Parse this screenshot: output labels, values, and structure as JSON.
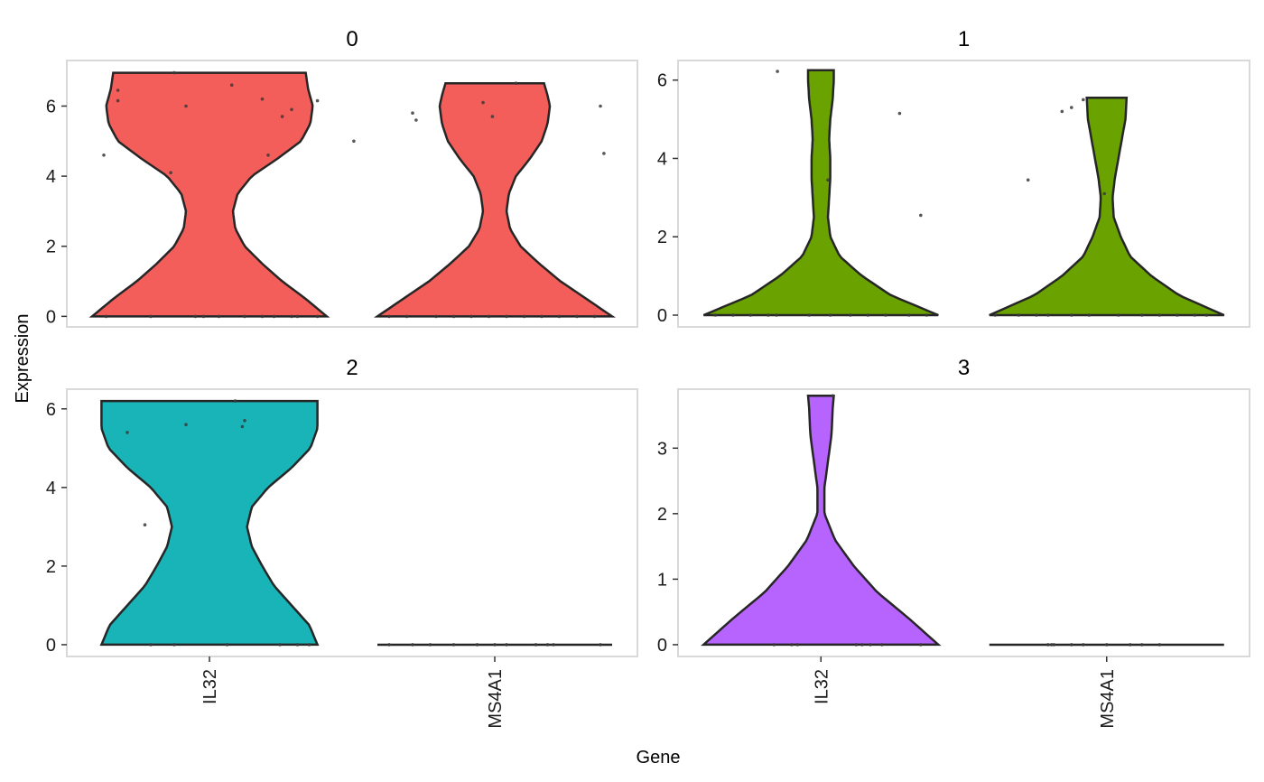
{
  "chart_data": {
    "type": "violin",
    "xlabel": "Gene",
    "ylabel": "Expression",
    "categories": [
      "IL32",
      "MS4A1"
    ],
    "colors": {
      "0": "#F35E5A",
      "1": "#6AA300",
      "2": "#19B4B8",
      "3": "#B763FE"
    },
    "panels": [
      {
        "id": "0",
        "ylim": [
          -0.3,
          7.3
        ],
        "yticks": [
          0,
          2,
          4,
          6
        ],
        "violins": [
          {
            "gene": "IL32",
            "max": 6.95,
            "dens": [
              [
                0,
                1.0
              ],
              [
                0.5,
                0.82
              ],
              [
                1.0,
                0.62
              ],
              [
                1.5,
                0.45
              ],
              [
                2.0,
                0.3
              ],
              [
                2.5,
                0.22
              ],
              [
                3.0,
                0.2
              ],
              [
                3.5,
                0.24
              ],
              [
                4.0,
                0.36
              ],
              [
                4.5,
                0.58
              ],
              [
                5.0,
                0.78
              ],
              [
                5.5,
                0.86
              ],
              [
                6.0,
                0.88
              ],
              [
                6.5,
                0.84
              ],
              [
                6.95,
                0.82
              ]
            ],
            "points": [
              [
                6.95,
                -0.3
              ],
              [
                6.45,
                -0.78
              ],
              [
                6.15,
                -0.78
              ],
              [
                6.6,
                0.19
              ],
              [
                6.0,
                -0.2
              ],
              [
                6.2,
                0.45
              ],
              [
                5.7,
                0.62
              ],
              [
                5.9,
                0.7
              ],
              [
                6.15,
                0.92
              ],
              [
                5.0,
                1.23
              ],
              [
                4.6,
                -0.9
              ],
              [
                4.1,
                -0.33
              ],
              [
                4.6,
                0.5
              ],
              [
                0,
                -0.88
              ],
              [
                0,
                -0.5
              ],
              [
                0,
                -0.12
              ],
              [
                0,
                -0.05
              ],
              [
                0,
                0.08
              ],
              [
                0,
                0.3
              ],
              [
                0,
                0.45
              ],
              [
                0,
                0.55
              ],
              [
                0,
                0.7
              ],
              [
                0,
                0.75
              ],
              [
                0,
                0.92
              ]
            ]
          },
          {
            "gene": "MS4A1",
            "max": 6.65,
            "dens": [
              [
                0,
                1.0
              ],
              [
                0.5,
                0.78
              ],
              [
                1.0,
                0.56
              ],
              [
                1.5,
                0.38
              ],
              [
                2.0,
                0.22
              ],
              [
                2.5,
                0.13
              ],
              [
                3.0,
                0.1
              ],
              [
                3.5,
                0.12
              ],
              [
                4.0,
                0.18
              ],
              [
                4.5,
                0.3
              ],
              [
                5.0,
                0.4
              ],
              [
                5.5,
                0.45
              ],
              [
                6.0,
                0.47
              ],
              [
                6.3,
                0.45
              ],
              [
                6.65,
                0.42
              ]
            ],
            "points": [
              [
                5.8,
                -0.7
              ],
              [
                5.6,
                -0.67
              ],
              [
                6.1,
                -0.1
              ],
              [
                5.7,
                -0.02
              ],
              [
                6.65,
                0.18
              ],
              [
                6.0,
                0.9
              ],
              [
                4.65,
                0.93
              ],
              [
                0,
                -0.9
              ],
              [
                0,
                -0.75
              ],
              [
                0,
                -0.5
              ],
              [
                0,
                -0.35
              ],
              [
                0,
                -0.2
              ],
              [
                0,
                -0.05
              ],
              [
                0,
                0.1
              ],
              [
                0,
                0.25
              ],
              [
                0,
                0.4
              ],
              [
                0,
                0.55
              ],
              [
                0,
                0.7
              ],
              [
                0,
                0.85
              ]
            ]
          }
        ]
      },
      {
        "id": "1",
        "ylim": [
          -0.3,
          6.5
        ],
        "yticks": [
          0,
          2,
          4,
          6
        ],
        "violins": [
          {
            "gene": "IL32",
            "max": 6.25,
            "dens": [
              [
                0,
                1.0
              ],
              [
                0.5,
                0.6
              ],
              [
                1.0,
                0.35
              ],
              [
                1.5,
                0.16
              ],
              [
                2.0,
                0.08
              ],
              [
                2.5,
                0.06
              ],
              [
                3.0,
                0.07
              ],
              [
                3.5,
                0.08
              ],
              [
                4.0,
                0.08
              ],
              [
                4.5,
                0.07
              ],
              [
                5.0,
                0.08
              ],
              [
                5.5,
                0.1
              ],
              [
                6.0,
                0.11
              ],
              [
                6.25,
                0.11
              ]
            ],
            "points": [
              [
                6.22,
                -0.37
              ],
              [
                5.15,
                0.67
              ],
              [
                3.45,
                0.06
              ],
              [
                2.55,
                0.85
              ],
              [
                0,
                -0.9
              ],
              [
                0,
                -0.75
              ],
              [
                0,
                -0.6
              ],
              [
                0,
                -0.45
              ],
              [
                0,
                -0.38
              ],
              [
                0,
                -0.1
              ],
              [
                0,
                0.08
              ],
              [
                0,
                0.25
              ],
              [
                0,
                0.4
              ],
              [
                0,
                0.55
              ],
              [
                0,
                0.75
              ],
              [
                0,
                0.9
              ]
            ]
          },
          {
            "gene": "MS4A1",
            "max": 5.55,
            "dens": [
              [
                0,
                1.0
              ],
              [
                0.5,
                0.62
              ],
              [
                1.0,
                0.38
              ],
              [
                1.5,
                0.2
              ],
              [
                2.0,
                0.12
              ],
              [
                2.5,
                0.06
              ],
              [
                3.0,
                0.05
              ],
              [
                3.5,
                0.07
              ],
              [
                4.0,
                0.1
              ],
              [
                4.5,
                0.13
              ],
              [
                5.0,
                0.16
              ],
              [
                5.55,
                0.17
              ]
            ],
            "points": [
              [
                5.2,
                -0.38
              ],
              [
                5.3,
                -0.3
              ],
              [
                5.5,
                -0.2
              ],
              [
                3.45,
                -0.67
              ],
              [
                3.1,
                -0.02
              ],
              [
                0,
                -0.95
              ],
              [
                0,
                -0.75
              ],
              [
                0,
                -0.6
              ],
              [
                0,
                -0.5
              ],
              [
                0,
                -0.3
              ],
              [
                0,
                -0.15
              ],
              [
                0,
                0.1
              ],
              [
                0,
                0.3
              ],
              [
                0,
                0.45
              ],
              [
                0,
                0.6
              ],
              [
                0,
                0.75
              ],
              [
                0,
                0.85
              ]
            ]
          }
        ]
      },
      {
        "id": "2",
        "ylim": [
          -0.3,
          6.5
        ],
        "yticks": [
          0,
          2,
          4,
          6
        ],
        "violins": [
          {
            "gene": "IL32",
            "max": 6.2,
            "dens": [
              [
                0,
                0.92
              ],
              [
                0.5,
                0.85
              ],
              [
                1.0,
                0.7
              ],
              [
                1.5,
                0.55
              ],
              [
                2.0,
                0.45
              ],
              [
                2.5,
                0.36
              ],
              [
                3.0,
                0.32
              ],
              [
                3.5,
                0.36
              ],
              [
                4.0,
                0.5
              ],
              [
                4.5,
                0.7
              ],
              [
                5.0,
                0.86
              ],
              [
                5.5,
                0.92
              ],
              [
                6.0,
                0.92
              ],
              [
                6.2,
                0.92
              ]
            ],
            "points": [
              [
                6.2,
                0.22
              ],
              [
                5.4,
                -0.7
              ],
              [
                5.6,
                -0.2
              ],
              [
                5.7,
                0.3
              ],
              [
                5.55,
                0.28
              ],
              [
                3.05,
                -0.55
              ],
              [
                0,
                -0.5
              ],
              [
                0,
                -0.3
              ],
              [
                0,
                0.15
              ],
              [
                0,
                0.6
              ],
              [
                0,
                0.75
              ],
              [
                0,
                0.85
              ]
            ]
          },
          {
            "gene": "MS4A1",
            "max": 0,
            "dens": [
              [
                0,
                1.0
              ]
            ],
            "points": [
              [
                0,
                -0.9
              ],
              [
                0,
                -0.7
              ],
              [
                0,
                -0.55
              ],
              [
                0,
                -0.35
              ],
              [
                0,
                -0.15
              ],
              [
                0,
                0.0
              ],
              [
                0,
                0.1
              ],
              [
                0,
                0.35
              ],
              [
                0,
                0.45
              ],
              [
                0,
                0.5
              ],
              [
                0,
                0.9
              ]
            ]
          }
        ]
      },
      {
        "id": "3",
        "ylim": [
          -0.18,
          3.9
        ],
        "yticks": [
          0,
          1,
          2,
          3
        ],
        "violins": [
          {
            "gene": "IL32",
            "max": 3.8,
            "dens": [
              [
                0,
                1.0
              ],
              [
                0.4,
                0.75
              ],
              [
                0.8,
                0.48
              ],
              [
                1.2,
                0.28
              ],
              [
                1.6,
                0.12
              ],
              [
                2.0,
                0.03
              ],
              [
                2.4,
                0.03
              ],
              [
                2.8,
                0.06
              ],
              [
                3.2,
                0.09
              ],
              [
                3.6,
                0.1
              ],
              [
                3.8,
                0.11
              ]
            ],
            "points": [
              [
                3.8,
                0.1
              ],
              [
                0,
                -0.4
              ],
              [
                0,
                -0.25
              ],
              [
                0,
                -0.2
              ],
              [
                0,
                0.3
              ],
              [
                0,
                0.35
              ],
              [
                0,
                0.42
              ],
              [
                0,
                0.52
              ],
              [
                0,
                0.85
              ]
            ]
          },
          {
            "gene": "MS4A1",
            "max": 0,
            "dens": [
              [
                0,
                1.0
              ]
            ],
            "points": [
              [
                0,
                -0.5
              ],
              [
                0,
                -0.47
              ],
              [
                0,
                -0.45
              ],
              [
                0,
                -0.3
              ],
              [
                0,
                -0.2
              ],
              [
                0,
                0.0
              ],
              [
                0,
                0.2
              ],
              [
                0,
                0.3
              ],
              [
                0,
                0.45
              ]
            ]
          }
        ]
      }
    ]
  }
}
